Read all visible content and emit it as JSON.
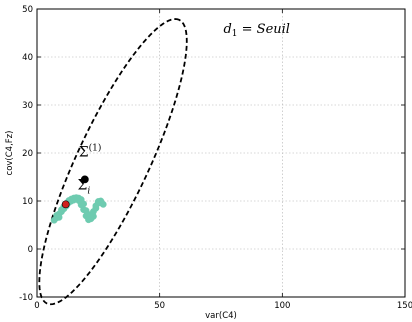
{
  "chart_data": {
    "type": "scatter",
    "title": "",
    "xlabel": "var(C4)",
    "ylabel": "cov(C4,Fz)",
    "xlim": [
      0,
      150
    ],
    "ylim": [
      -10,
      50
    ],
    "xticks": [
      0,
      50,
      100,
      150
    ],
    "yticks": [
      -10,
      0,
      10,
      20,
      30,
      40,
      50
    ],
    "grid": true,
    "series": [
      {
        "color": "#6ecbb0",
        "marker": "circle",
        "x": [
          7,
          8,
          9,
          10,
          11,
          12,
          13,
          14,
          15,
          16,
          17,
          18,
          19,
          20,
          21,
          22,
          23,
          24,
          25,
          26,
          27,
          8,
          10,
          12,
          14,
          16,
          18,
          20,
          22,
          24,
          26,
          9,
          11,
          13,
          15,
          17,
          19,
          21,
          23,
          25
        ],
        "y": [
          6.0,
          6.5,
          7.3,
          8.2,
          8.9,
          9.5,
          10.1,
          10.4,
          10.6,
          10.5,
          10.1,
          9.2,
          8.2,
          6.9,
          6.1,
          6.5,
          7.8,
          9.0,
          9.7,
          9.6,
          9.3,
          7.0,
          7.8,
          9.0,
          10.0,
          10.7,
          10.3,
          8.0,
          6.3,
          8.5,
          10.0,
          6.6,
          8.4,
          9.7,
          10.2,
          10.6,
          9.4,
          7.2,
          6.8,
          9.9
        ]
      }
    ],
    "points": [
      {
        "label": "Σi",
        "x": 19.5,
        "y": 14.5,
        "color": "#000000"
      },
      {
        "label": "",
        "x": 11.7,
        "y": 9.3,
        "color": "#d0201c"
      }
    ],
    "ellipse": {
      "style": "dashed",
      "center": [
        31,
        18.2
      ],
      "semi_major": 32.6,
      "semi_minor": 7.5,
      "angle_deg": 65
    },
    "annotations": [
      {
        "text": "d",
        "sub": "1",
        "rest": " = Seuil",
        "x": 76,
        "y": 45
      },
      {
        "text": "Σ",
        "sup": "(1)",
        "x": 17,
        "y": 19.3
      },
      {
        "text": "Σ",
        "sub": "i",
        "x": 16.5,
        "y": 12.4
      }
    ]
  }
}
